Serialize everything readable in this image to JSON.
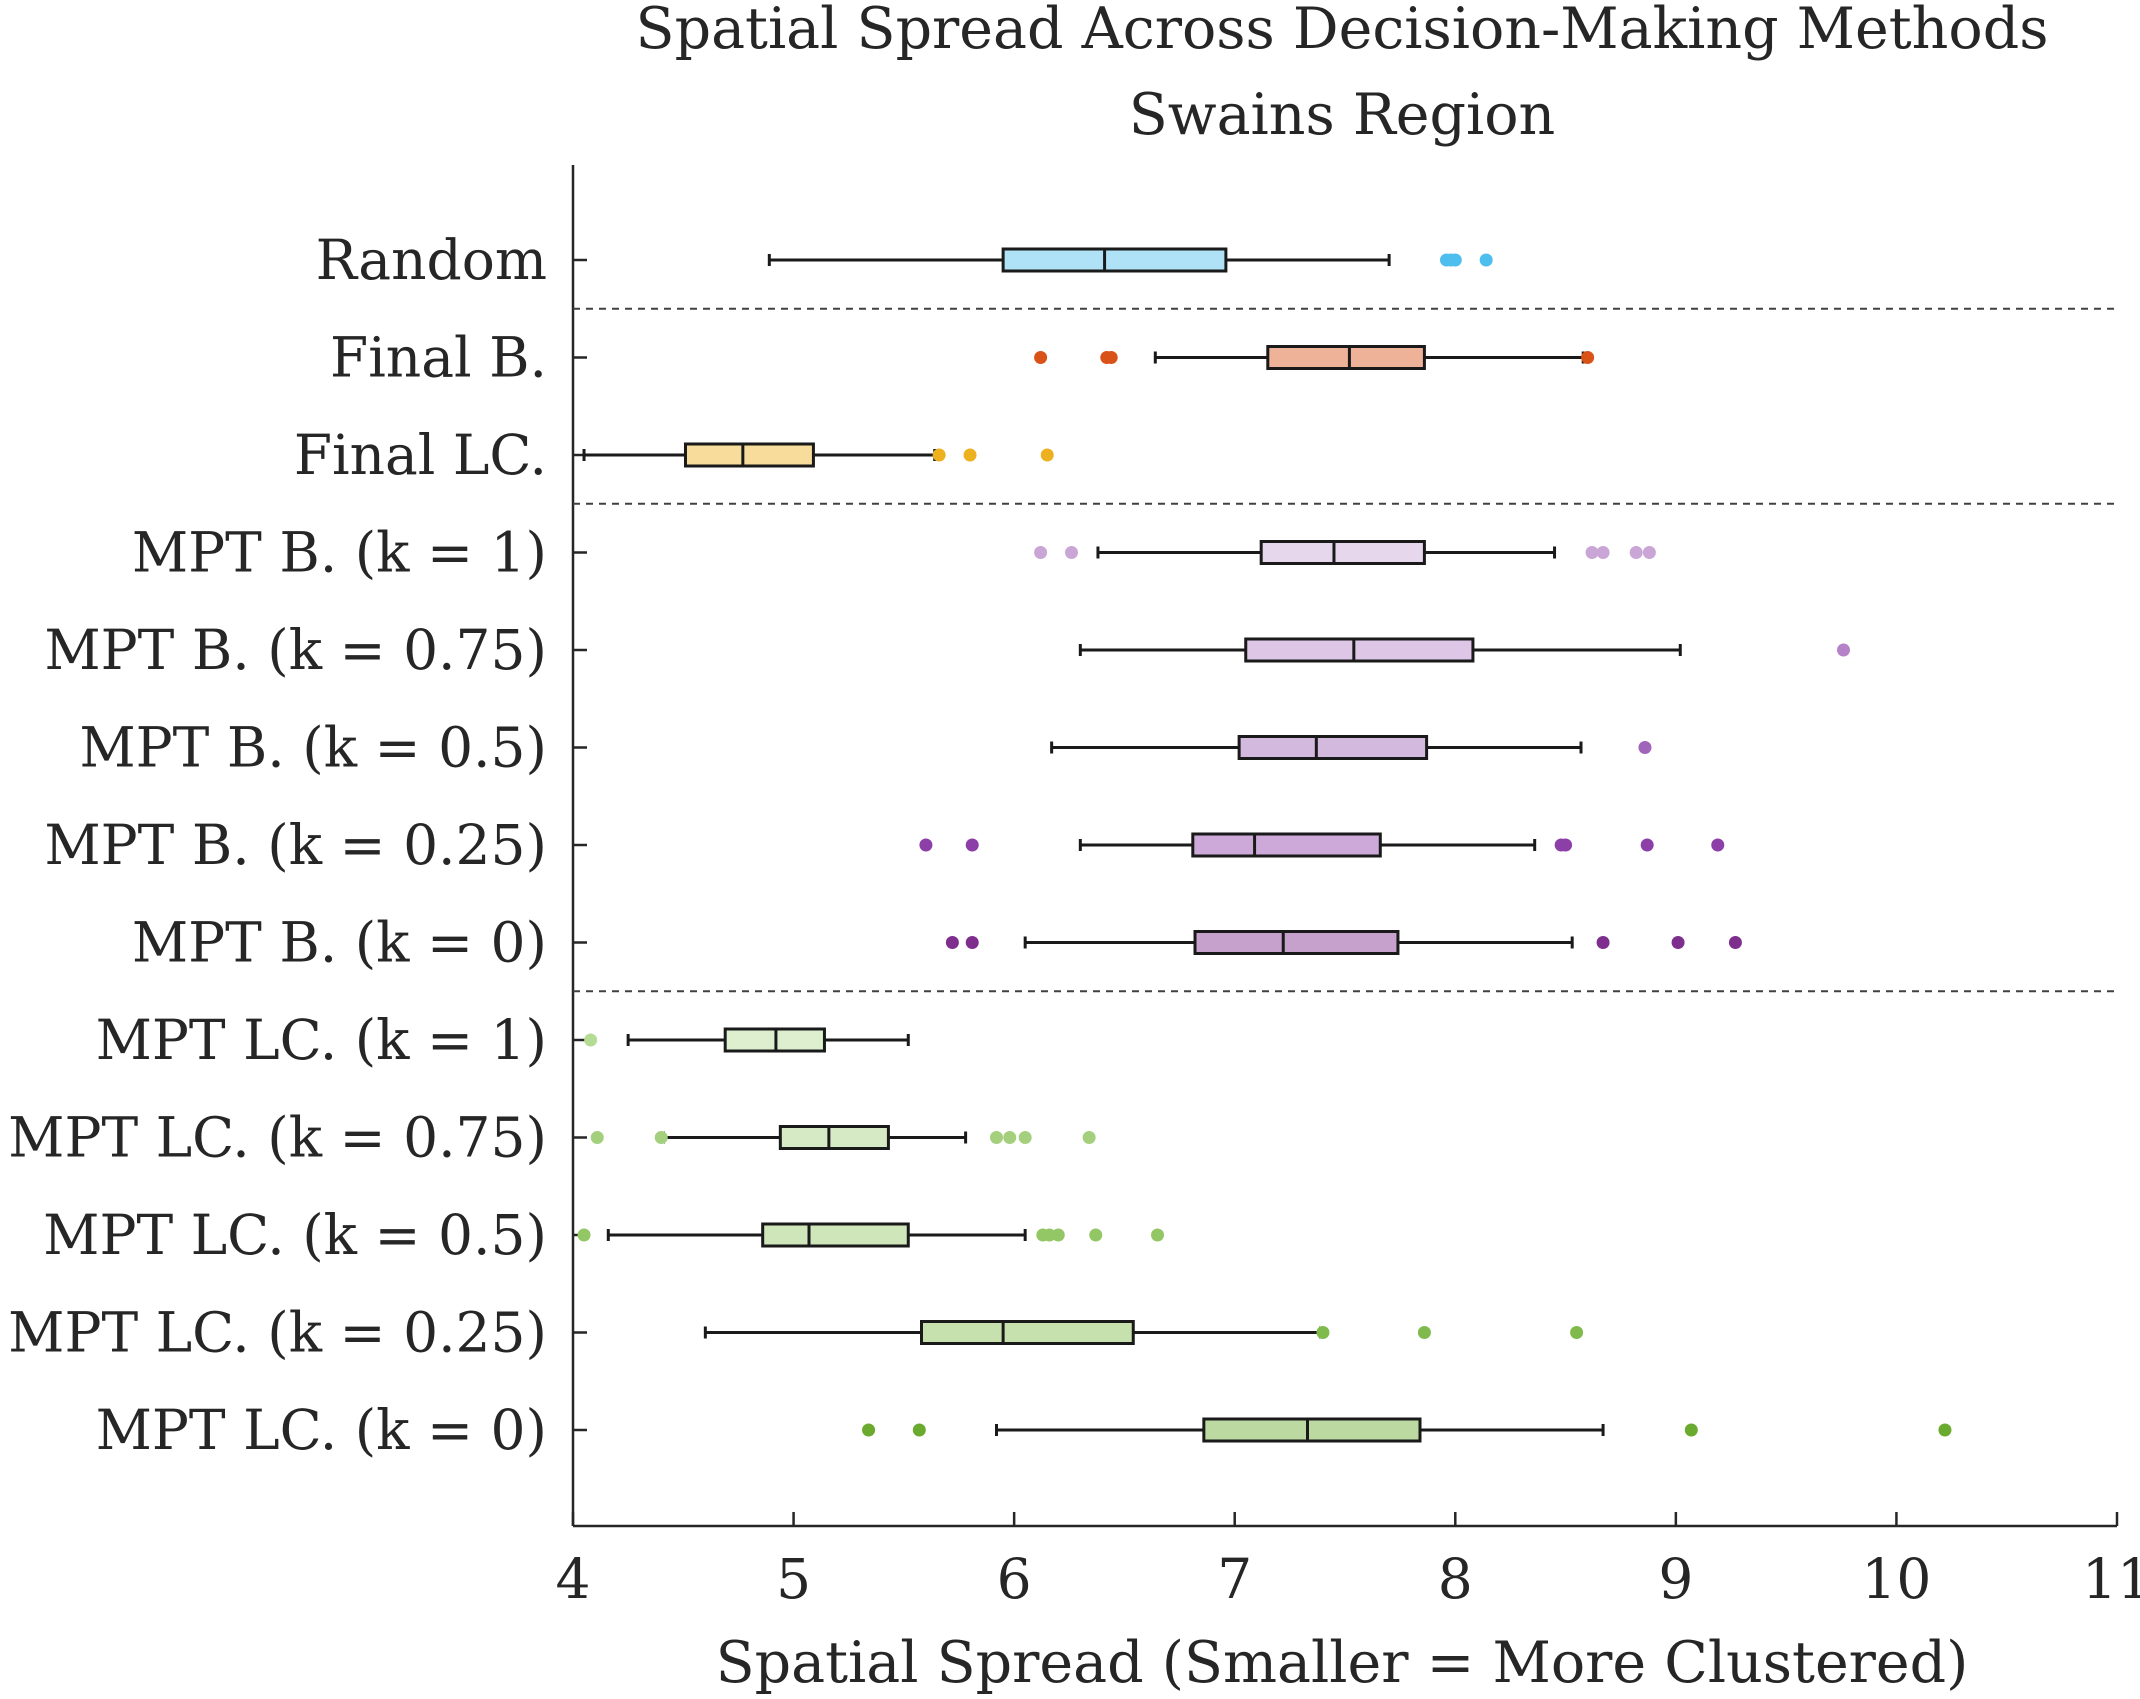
{
  "chart_data": {
    "type": "boxplot",
    "orientation": "horizontal",
    "title": "Spatial Spread Across Decision-Making Methods",
    "subtitle": "Swains Region",
    "xlabel": "Spatial Spread (Smaller = More Clustered)",
    "ylabel": "",
    "xlim": [
      4,
      11
    ],
    "xticks": [
      4,
      5,
      6,
      7,
      8,
      9,
      10,
      11
    ],
    "grid": false,
    "separators_after": [
      "Random",
      "Final LC.",
      "MPT B. (k = 0)"
    ],
    "categories": [
      {
        "label": "Random",
        "color": "#4dbeee",
        "whisker_low": 4.89,
        "q1": 5.95,
        "median": 6.41,
        "q3": 6.96,
        "whisker_high": 7.7,
        "outliers": [
          7.96,
          7.98,
          8.0,
          8.14
        ]
      },
      {
        "label": "Final B.",
        "color": "#d95319",
        "whisker_low": 6.64,
        "q1": 7.15,
        "median": 7.52,
        "q3": 7.86,
        "whisker_high": 8.58,
        "outliers": [
          6.12,
          6.42,
          6.44,
          8.6
        ]
      },
      {
        "label": "Final LC.",
        "color": "#edb120",
        "whisker_low": 4.05,
        "q1": 4.51,
        "median": 4.77,
        "q3": 5.09,
        "whisker_high": 5.64,
        "outliers": [
          5.66,
          5.8,
          6.15
        ]
      },
      {
        "label": "MPT B. (k = 1)",
        "color": "#c9a6d6",
        "whisker_low": 6.38,
        "q1": 7.12,
        "median": 7.45,
        "q3": 7.86,
        "whisker_high": 8.45,
        "outliers": [
          6.12,
          6.26,
          8.62,
          8.67,
          8.82,
          8.88
        ]
      },
      {
        "label": "MPT B. (k = 0.75)",
        "color": "#b682c8",
        "whisker_low": 6.3,
        "q1": 7.05,
        "median": 7.54,
        "q3": 8.08,
        "whisker_high": 9.02,
        "outliers": [
          9.76
        ]
      },
      {
        "label": "MPT B. (k = 0.5)",
        "color": "#a064b8",
        "whisker_low": 6.17,
        "q1": 7.02,
        "median": 7.37,
        "q3": 7.87,
        "whisker_high": 8.57,
        "outliers": [
          8.86
        ]
      },
      {
        "label": "MPT B. (k = 0.25)",
        "color": "#8d3fa8",
        "whisker_low": 6.3,
        "q1": 6.81,
        "median": 7.09,
        "q3": 7.66,
        "whisker_high": 8.36,
        "outliers": [
          5.6,
          5.81,
          8.48,
          8.5,
          8.87,
          9.19
        ]
      },
      {
        "label": "MPT B. (k = 0)",
        "color": "#7e2f8e",
        "whisker_low": 6.05,
        "q1": 6.82,
        "median": 7.22,
        "q3": 7.74,
        "whisker_high": 8.53,
        "outliers": [
          5.72,
          5.81,
          8.67,
          9.01,
          9.27
        ]
      },
      {
        "label": "MPT LC. (k = 1)",
        "color": "#b5dc94",
        "whisker_low": 4.25,
        "q1": 4.69,
        "median": 4.92,
        "q3": 5.14,
        "whisker_high": 5.52,
        "outliers": [
          4.08
        ]
      },
      {
        "label": "MPT LC. (k = 0.75)",
        "color": "#a4d07e",
        "whisker_low": 4.41,
        "q1": 4.94,
        "median": 5.16,
        "q3": 5.43,
        "whisker_high": 5.78,
        "outliers": [
          4.11,
          4.4,
          5.92,
          5.98,
          6.05,
          6.34
        ]
      },
      {
        "label": "MPT LC. (k = 0.5)",
        "color": "#93c766",
        "whisker_low": 4.16,
        "q1": 4.86,
        "median": 5.07,
        "q3": 5.52,
        "whisker_high": 6.05,
        "outliers": [
          4.05,
          6.13,
          6.16,
          6.2,
          6.37,
          6.65
        ]
      },
      {
        "label": "MPT LC. (k = 0.25)",
        "color": "#80ba4c",
        "whisker_low": 4.6,
        "q1": 5.58,
        "median": 5.95,
        "q3": 6.54,
        "whisker_high": 7.39,
        "outliers": [
          7.4,
          7.86,
          8.55
        ]
      },
      {
        "label": "MPT LC. (k = 0)",
        "color": "#6aaa2e",
        "whisker_low": 5.92,
        "q1": 6.86,
        "median": 7.33,
        "q3": 7.84,
        "whisker_high": 8.67,
        "outliers": [
          5.34,
          5.57,
          9.07,
          10.22
        ]
      }
    ]
  }
}
